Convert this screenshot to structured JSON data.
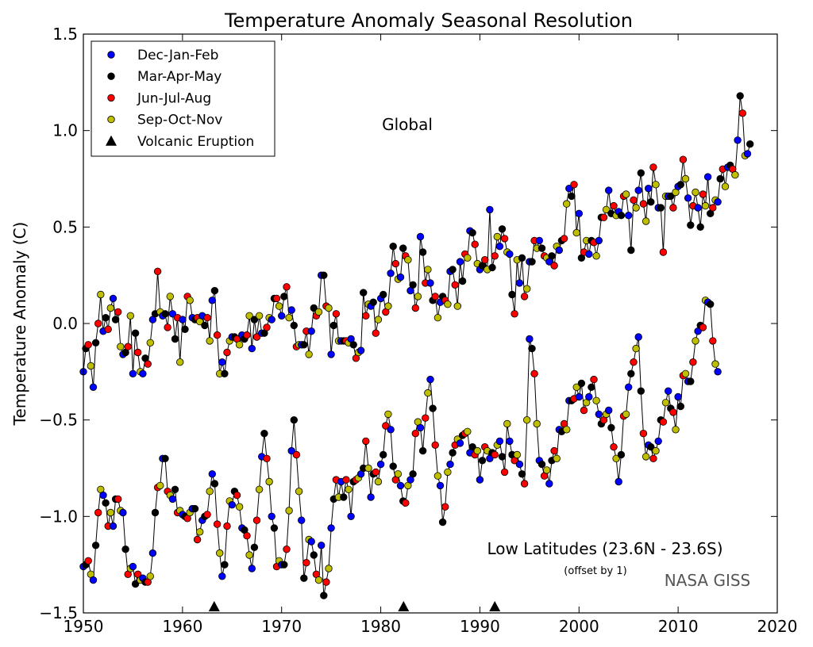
{
  "chart_data": {
    "type": "scatter",
    "title": "Temperature Anomaly Seasonal Resolution",
    "xlabel": "",
    "ylabel": "Temperature Anomaly (C)",
    "xlim": [
      1950,
      2020
    ],
    "ylim": [
      -1.5,
      1.5
    ],
    "xticks": [
      "1950",
      "1960",
      "1970",
      "1980",
      "1990",
      "2000",
      "2010",
      "2020"
    ],
    "yticks": [
      "1.5",
      "1.0",
      "0.5",
      "0.0",
      "−0.5",
      "−1.0",
      "−1.5"
    ],
    "grid": false,
    "legend_position": "top-left",
    "season_colors": [
      "#0000ff",
      "#000000",
      "#ff0000",
      "#bfbf00"
    ],
    "eruption_marker_color": "#000000",
    "legend": [
      "Dec-Jan-Feb",
      "Mar-Apr-May",
      "Jun-Jul-Aug",
      "Sep-Oct-Nov",
      "Volcanic Eruption"
    ],
    "annotations": {
      "global": "Global",
      "low_lat": "Low Latitudes (23.6N - 23.6S)",
      "offset": "(offset by 1)",
      "credit": "NASA GISS"
    },
    "eruptions": [
      1963.2,
      1982.3,
      1991.5
    ],
    "series": [
      {
        "name": "Global",
        "start": 1950.0,
        "values": [
          -0.25,
          -0.13,
          -0.11,
          -0.22,
          -0.33,
          -0.1,
          0.0,
          0.15,
          -0.04,
          0.03,
          -0.03,
          0.08,
          0.13,
          0.02,
          0.06,
          -0.12,
          -0.16,
          -0.15,
          -0.12,
          0.04,
          -0.26,
          -0.05,
          -0.15,
          -0.25,
          -0.26,
          -0.18,
          -0.21,
          -0.1,
          0.02,
          0.05,
          0.27,
          0.06,
          0.04,
          0.05,
          -0.02,
          0.14,
          0.05,
          -0.08,
          0.03,
          -0.2,
          0.02,
          -0.03,
          0.14,
          0.12,
          0.03,
          0.02,
          0.03,
          0.01,
          0.04,
          -0.01,
          0.03,
          -0.09,
          0.12,
          0.17,
          -0.06,
          -0.26,
          -0.2,
          -0.26,
          -0.15,
          -0.09,
          -0.07,
          -0.07,
          -0.08,
          -0.11,
          -0.06,
          -0.08,
          -0.06,
          0.04,
          -0.13,
          0.02,
          -0.07,
          0.04,
          -0.05,
          -0.05,
          -0.02,
          0.03,
          0.02,
          0.13,
          0.13,
          0.09,
          0.04,
          0.14,
          0.19,
          0.03,
          0.07,
          -0.01,
          -0.12,
          -0.11,
          -0.11,
          -0.11,
          -0.04,
          -0.16,
          -0.04,
          0.08,
          0.04,
          0.06,
          0.25,
          0.25,
          0.09,
          0.08,
          -0.16,
          -0.01,
          0.05,
          -0.09,
          -0.09,
          -0.09,
          -0.09,
          -0.1,
          -0.08,
          -0.11,
          -0.18,
          -0.15,
          -0.14,
          0.16,
          0.04,
          0.1,
          0.09,
          0.11,
          -0.05,
          0.02,
          0.13,
          0.15,
          0.06,
          0.09,
          0.26,
          0.4,
          0.31,
          0.23,
          0.24,
          0.39,
          0.35,
          0.33,
          0.17,
          0.2,
          0.08,
          0.14,
          0.45,
          0.37,
          0.21,
          0.28,
          0.21,
          0.12,
          0.14,
          0.03,
          0.11,
          0.14,
          0.12,
          0.1,
          0.27,
          0.28,
          0.2,
          0.09,
          0.32,
          0.22,
          0.36,
          0.34,
          0.48,
          0.47,
          0.41,
          0.31,
          0.28,
          0.3,
          0.33,
          0.28,
          0.59,
          0.29,
          0.35,
          0.45,
          0.4,
          0.49,
          0.44,
          0.37,
          0.36,
          0.15,
          0.05,
          0.33,
          0.21,
          0.34,
          0.14,
          0.18,
          0.32,
          0.32,
          0.43,
          0.39,
          0.43,
          0.39,
          0.35,
          0.34,
          0.32,
          0.35,
          0.3,
          0.4,
          0.38,
          0.43,
          0.44,
          0.62,
          0.7,
          0.66,
          0.72,
          0.47,
          0.57,
          0.34,
          0.37,
          0.43,
          0.36,
          0.43,
          0.42,
          0.35,
          0.43,
          0.55,
          0.55,
          0.59,
          0.69,
          0.57,
          0.61,
          0.56,
          0.58,
          0.56,
          0.66,
          0.67,
          0.56,
          0.38,
          0.64,
          0.6,
          0.69,
          0.78,
          0.62,
          0.53,
          0.7,
          0.63,
          0.81,
          0.72,
          0.6,
          0.6,
          0.37,
          0.66,
          0.66,
          0.66,
          0.6,
          0.68,
          0.71,
          0.72,
          0.85,
          0.75,
          0.65,
          0.51,
          0.61,
          0.68,
          0.6,
          0.5,
          0.67,
          0.61,
          0.76,
          0.57,
          0.6,
          0.64,
          0.63,
          0.75,
          0.8,
          0.71,
          0.81,
          0.82,
          0.8,
          0.77,
          0.95,
          1.18,
          1.09,
          0.87,
          0.88,
          0.93
        ]
      },
      {
        "name": "Low Latitudes (23.6N - 23.6S)",
        "start": 1950.0,
        "values": [
          -1.26,
          -1.25,
          -1.23,
          -1.3,
          -1.33,
          -1.15,
          -0.98,
          -0.86,
          -0.89,
          -0.93,
          -1.05,
          -0.98,
          -1.05,
          -0.91,
          -0.91,
          -0.97,
          -0.98,
          -1.17,
          -1.3,
          -1.27,
          -1.26,
          -1.35,
          -1.3,
          -1.33,
          -1.32,
          -1.34,
          -1.34,
          -1.31,
          -1.19,
          -0.98,
          -0.85,
          -0.84,
          -0.7,
          -0.7,
          -0.87,
          -0.89,
          -0.91,
          -0.86,
          -0.98,
          -0.97,
          -0.99,
          -1.0,
          -1.01,
          -0.98,
          -0.96,
          -0.96,
          -1.12,
          -1.08,
          -1.02,
          -1.0,
          -0.99,
          -0.87,
          -0.78,
          -0.83,
          -1.04,
          -1.19,
          -1.31,
          -1.25,
          -1.05,
          -0.92,
          -0.94,
          -0.87,
          -0.89,
          -0.95,
          -1.06,
          -1.07,
          -1.1,
          -1.2,
          -1.27,
          -1.16,
          -1.02,
          -0.86,
          -0.69,
          -0.57,
          -0.7,
          -0.82,
          -1.0,
          -1.06,
          -1.26,
          -1.23,
          -1.25,
          -1.25,
          -1.17,
          -0.97,
          -0.66,
          -0.5,
          -0.68,
          -0.87,
          -1.02,
          -1.32,
          -1.24,
          -1.12,
          -1.13,
          -1.2,
          -1.3,
          -1.33,
          -1.15,
          -1.41,
          -1.34,
          -1.27,
          -1.06,
          -0.91,
          -0.81,
          -0.9,
          -0.82,
          -0.9,
          -0.81,
          -0.86,
          -1.0,
          -0.82,
          -0.81,
          -0.8,
          -0.78,
          -0.75,
          -0.61,
          -0.75,
          -0.9,
          -0.78,
          -0.77,
          -0.82,
          -0.73,
          -0.68,
          -0.53,
          -0.47,
          -0.55,
          -0.74,
          -0.81,
          -0.78,
          -0.84,
          -0.92,
          -0.93,
          -0.84,
          -0.81,
          -0.78,
          -0.57,
          -0.51,
          -0.54,
          -0.66,
          -0.49,
          -0.36,
          -0.29,
          -0.44,
          -0.63,
          -0.79,
          -0.84,
          -1.03,
          -0.95,
          -0.77,
          -0.73,
          -0.67,
          -0.63,
          -0.6,
          -0.62,
          -0.58,
          -0.57,
          -0.56,
          -0.67,
          -0.64,
          -0.68,
          -0.66,
          -0.81,
          -0.71,
          -0.64,
          -0.66,
          -0.7,
          -0.67,
          -0.68,
          -0.63,
          -0.61,
          -0.69,
          -0.77,
          -0.52,
          -0.61,
          -0.68,
          -0.71,
          -0.68,
          -0.73,
          -0.78,
          -0.83,
          -0.5,
          -0.08,
          -0.13,
          -0.26,
          -0.52,
          -0.71,
          -0.73,
          -0.79,
          -0.76,
          -0.83,
          -0.71,
          -0.66,
          -0.7,
          -0.55,
          -0.56,
          -0.52,
          -0.55,
          -0.4,
          -0.4,
          -0.39,
          -0.33,
          -0.38,
          -0.31,
          -0.45,
          -0.41,
          -0.38,
          -0.33,
          -0.29,
          -0.4,
          -0.47,
          -0.52,
          -0.5,
          -0.47,
          -0.45,
          -0.54,
          -0.64,
          -0.7,
          -0.82,
          -0.68,
          -0.48,
          -0.47,
          -0.33,
          -0.26,
          -0.2,
          -0.13,
          -0.07,
          -0.35,
          -0.57,
          -0.69,
          -0.63,
          -0.64,
          -0.7,
          -0.66,
          -0.61,
          -0.5,
          -0.51,
          -0.41,
          -0.35,
          -0.44,
          -0.46,
          -0.55,
          -0.38,
          -0.43,
          -0.27,
          -0.26,
          -0.3,
          -0.3,
          -0.2,
          -0.09,
          -0.04,
          -0.01,
          -0.02,
          0.12,
          0.11,
          0.1,
          -0.09,
          -0.21,
          -0.25
        ]
      }
    ]
  }
}
